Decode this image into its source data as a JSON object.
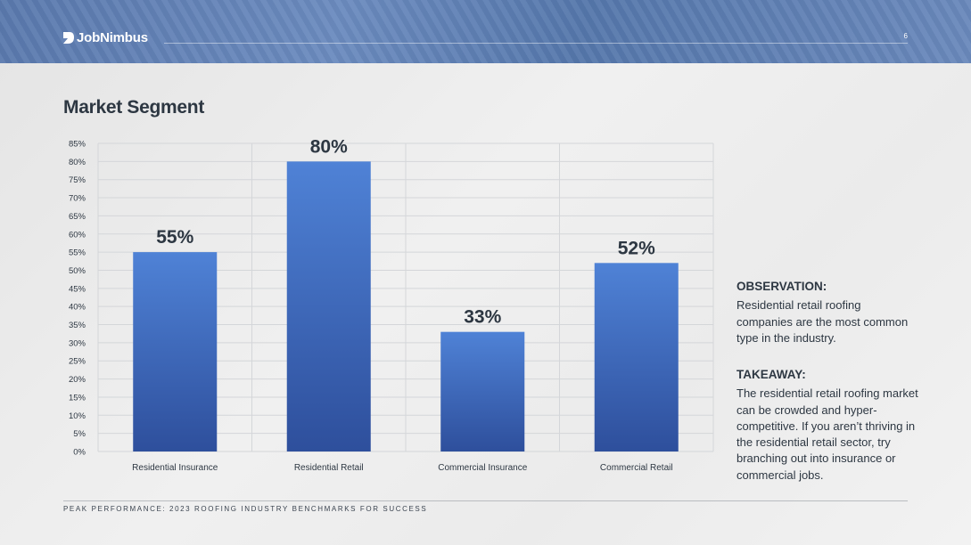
{
  "header": {
    "brand": "JobNimbus",
    "page_number": "6"
  },
  "page_title": "Market Segment",
  "chart_data": {
    "type": "bar",
    "categories": [
      "Residential Insurance",
      "Residential Retail",
      "Commercial Insurance",
      "Commercial Retail"
    ],
    "values": [
      55,
      80,
      33,
      52
    ],
    "data_labels": [
      "55%",
      "80%",
      "33%",
      "52%"
    ],
    "title": "",
    "xlabel": "",
    "ylabel": "",
    "ylim": [
      0,
      85
    ],
    "ytick_step": 5,
    "ytick_suffix": "%",
    "grid": true,
    "bar_color_top": "#4f82d6",
    "bar_color_bottom": "#2e4f9c",
    "legend": "none"
  },
  "observation": {
    "heading": "OBSERVATION:",
    "text": "Residential retail roofing companies are the most common type in the industry."
  },
  "takeaway": {
    "heading": "TAKEAWAY:",
    "text": "The residential retail roofing market can be crowded and hyper-competitive. If you aren’t thriving in the residential retail sector, try branching out into insurance or commercial jobs."
  },
  "footer": {
    "text": "PEAK PERFORMANCE: 2023 ROOFING INDUSTRY BENCHMARKS FOR SUCCESS"
  }
}
